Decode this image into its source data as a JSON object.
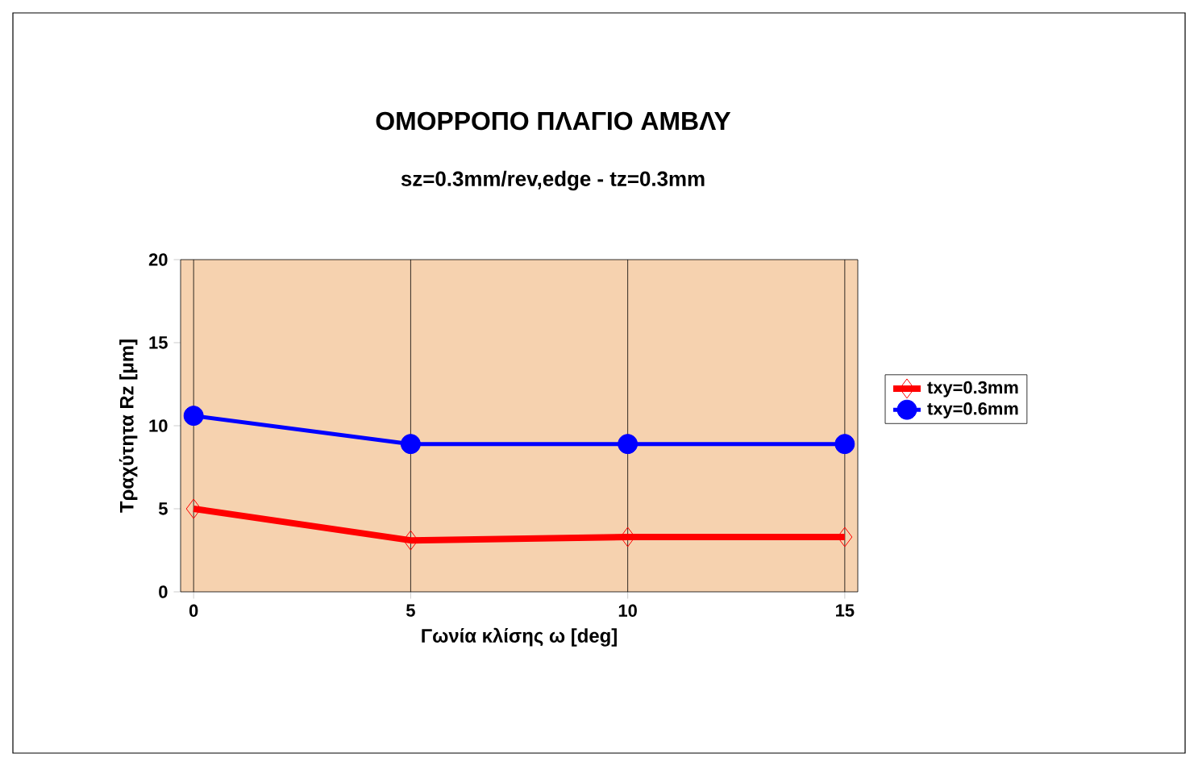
{
  "chart_data": {
    "type": "line",
    "title": "ΟΜΟΡΡΟΠΟ ΠΛΑΓΙΟ ΑΜΒΛΥ",
    "subtitle": "sz=0.3mm/rev,edge - tz=0.3mm",
    "xlabel": "Γωνία κλίσης ω [deg]",
    "ylabel": "Τραχύτητα Rz [μm]",
    "x": [
      0,
      5,
      10,
      15
    ],
    "series": [
      {
        "name": "txy=0.3mm",
        "color": "#ff0000",
        "marker": "diamond",
        "values": [
          5.0,
          3.1,
          3.3,
          3.3
        ]
      },
      {
        "name": "txy=0.6mm",
        "color": "#0000ff",
        "marker": "circle",
        "values": [
          10.6,
          8.9,
          8.9,
          8.9
        ]
      }
    ],
    "xlim": [
      0,
      15
    ],
    "xticks": [
      0,
      5,
      10,
      15
    ],
    "ylim": [
      0,
      20
    ],
    "yticks": [
      0,
      5,
      10,
      15,
      20
    ],
    "grid": "x",
    "legend": "right",
    "line_style": "solid"
  }
}
